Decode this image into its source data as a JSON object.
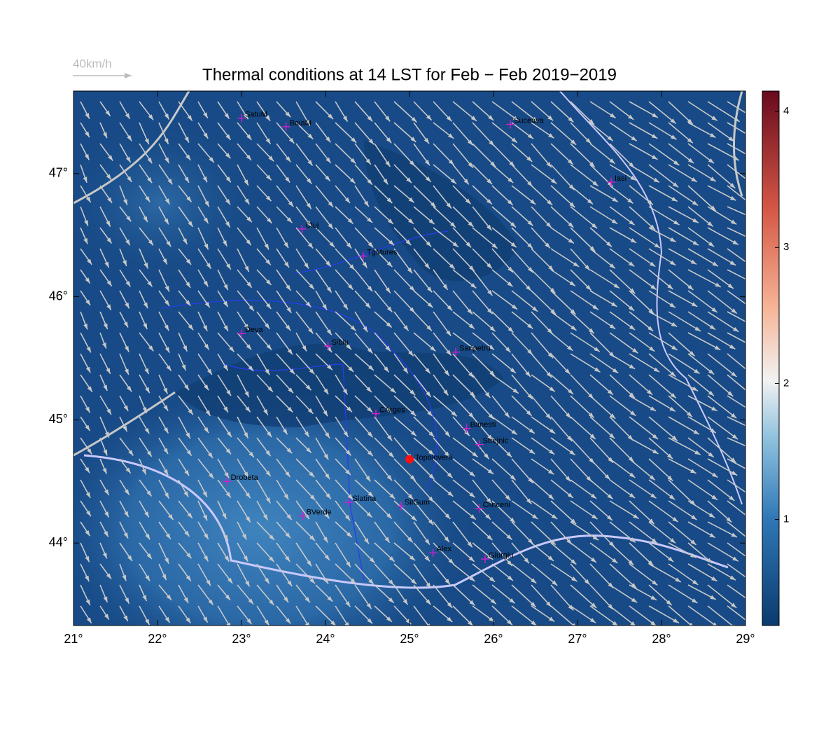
{
  "title": "Thermal conditions at 14 LST for Feb − Feb  2019−2019",
  "wind_legend": "40km/h",
  "lon_range": [
    21,
    29
  ],
  "lat_range": [
    43.33,
    47.67
  ],
  "lon_ticks": [
    {
      "value": 21,
      "label": "21°"
    },
    {
      "value": 22,
      "label": "22°"
    },
    {
      "value": 23,
      "label": "23°"
    },
    {
      "value": 24,
      "label": "24°"
    },
    {
      "value": 25,
      "label": "25°"
    },
    {
      "value": 26,
      "label": "26°"
    },
    {
      "value": 27,
      "label": "27°"
    },
    {
      "value": 28,
      "label": "28°"
    },
    {
      "value": 29,
      "label": "29°"
    }
  ],
  "lat_ticks": [
    {
      "value": 44,
      "label": "44°"
    },
    {
      "value": 45,
      "label": "45°"
    },
    {
      "value": 46,
      "label": "46°"
    },
    {
      "value": 47,
      "label": "47°"
    }
  ],
  "colorbar": {
    "range": [
      0.22,
      4.15
    ],
    "ticks": [
      1,
      2,
      3,
      4
    ]
  },
  "highlight": {
    "name": "Topoloveni",
    "lon": 25.0,
    "lat": 44.68
  },
  "stations": [
    {
      "name": "SatuM",
      "lon": 23.0,
      "lat": 47.45
    },
    {
      "name": "BaiaM",
      "lon": 23.53,
      "lat": 47.38
    },
    {
      "name": "Suceava",
      "lon": 26.2,
      "lat": 47.4
    },
    {
      "name": "Iasi",
      "lon": 27.4,
      "lat": 46.93
    },
    {
      "name": "Cluj",
      "lon": 23.72,
      "lat": 46.55
    },
    {
      "name": "TgMures",
      "lon": 24.45,
      "lat": 46.33
    },
    {
      "name": "Deva",
      "lon": 23.0,
      "lat": 45.7
    },
    {
      "name": "Sibiu",
      "lon": 24.03,
      "lat": 45.6
    },
    {
      "name": "Sanpetru",
      "lon": 25.55,
      "lat": 45.55
    },
    {
      "name": "CArges",
      "lon": 24.6,
      "lat": 45.05
    },
    {
      "name": "Banesti",
      "lon": 25.68,
      "lat": 44.93
    },
    {
      "name": "Strejnic",
      "lon": 25.83,
      "lat": 44.8
    },
    {
      "name": "Drobeta",
      "lon": 22.83,
      "lat": 44.5
    },
    {
      "name": "Slatina",
      "lon": 24.28,
      "lat": 44.33
    },
    {
      "name": "SilGum",
      "lon": 24.9,
      "lat": 44.3
    },
    {
      "name": "Clinceni",
      "lon": 25.83,
      "lat": 44.28
    },
    {
      "name": "BVerde",
      "lon": 23.73,
      "lat": 44.22
    },
    {
      "name": "Alex",
      "lon": 25.28,
      "lat": 43.92
    },
    {
      "name": "Giurgiu",
      "lon": 25.9,
      "lat": 43.87
    }
  ]
}
